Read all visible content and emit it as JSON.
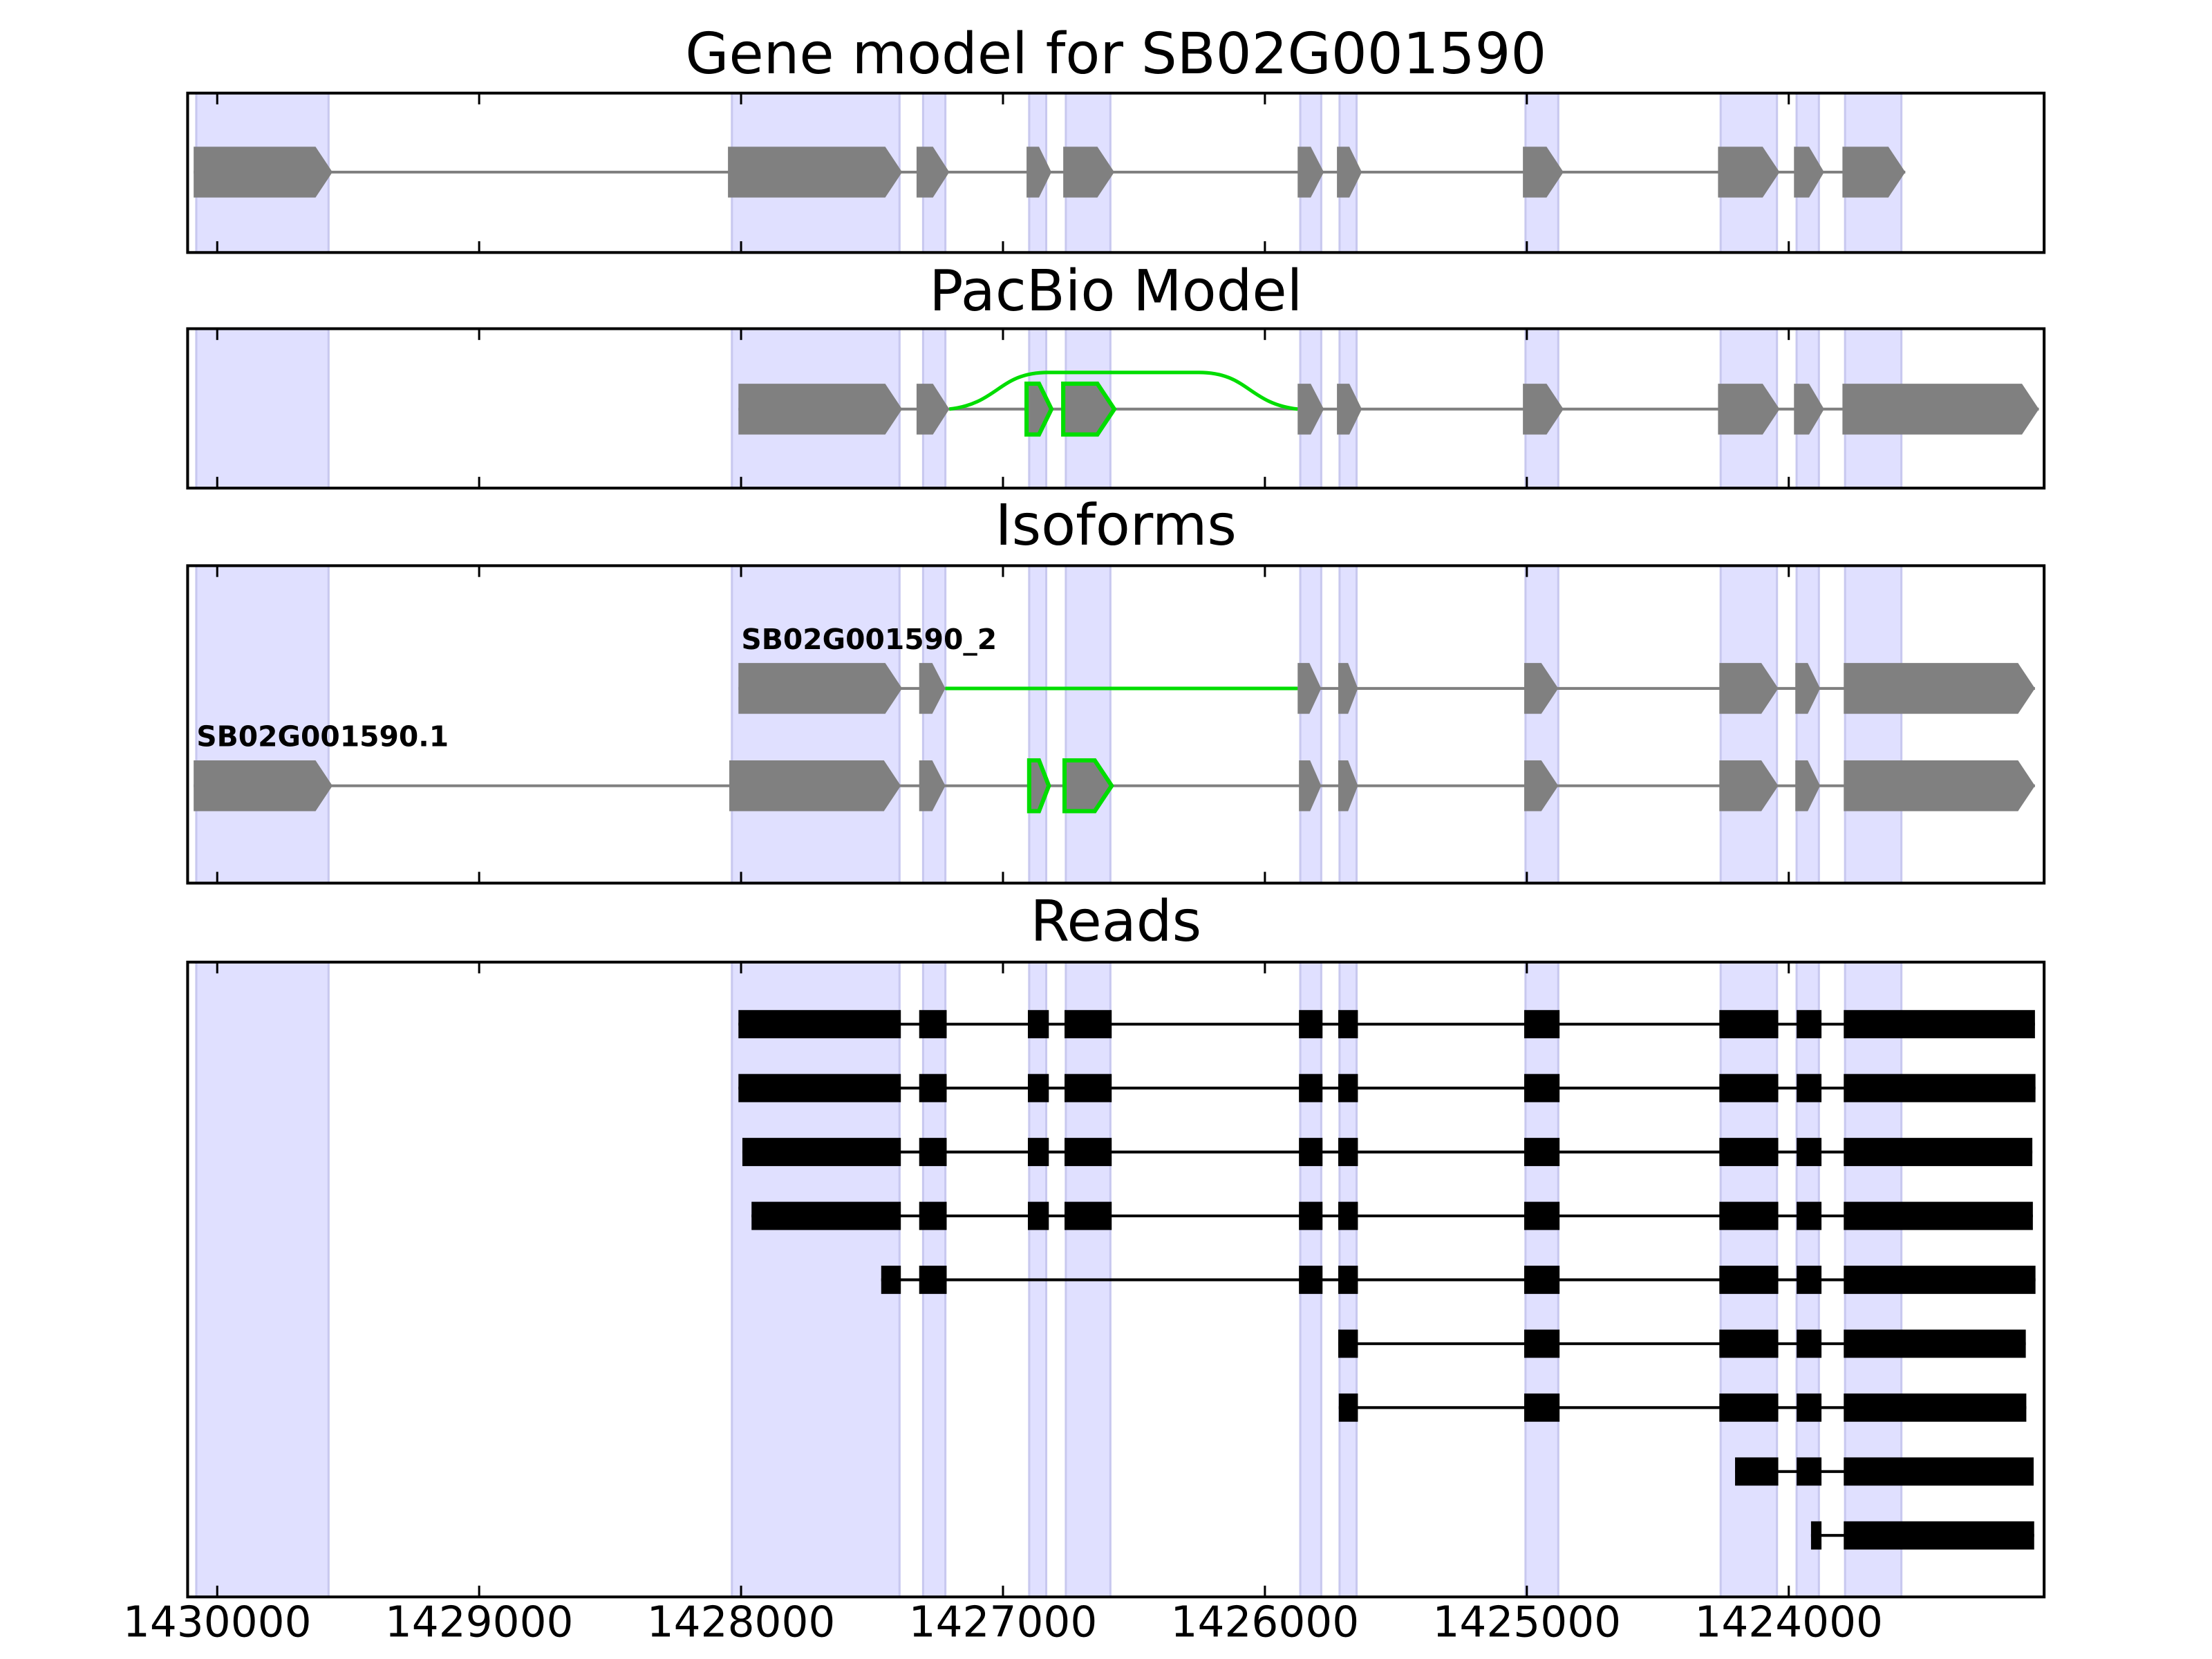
{
  "chart_data": {
    "type": "gene-tracks",
    "xlim": [
      1430113,
      1423025
    ],
    "xticks": [
      1430000,
      1429000,
      1428000,
      1427000,
      1426000,
      1425000,
      1424000
    ],
    "highlight_color": "#e0e0ff",
    "highlights": [
      [
        1430080,
        1429575
      ],
      [
        1428035,
        1427395
      ],
      [
        1427305,
        1427220
      ],
      [
        1426900,
        1426835
      ],
      [
        1426760,
        1426590
      ],
      [
        1425865,
        1425785
      ],
      [
        1425715,
        1425650
      ],
      [
        1425005,
        1424880
      ],
      [
        1424260,
        1424045
      ],
      [
        1423970,
        1423885
      ],
      [
        1423785,
        1423570
      ]
    ],
    "panels": [
      {
        "title": "Gene model for SB02G001590",
        "style": "arrow",
        "color": "#808080",
        "alt_color": "#00dd00",
        "tracks": [
          {
            "exons": [
              [
                1430090,
                1429560
              ],
              [
                1428050,
                1427385
              ],
              [
                1427330,
                1427205
              ],
              [
                1426910,
                1426815
              ],
              [
                1426770,
                1426575
              ],
              [
                1425875,
                1425775
              ],
              [
                1425725,
                1425630
              ],
              [
                1425015,
                1424860
              ],
              [
                1424270,
                1424035
              ],
              [
                1423980,
                1423865
              ],
              [
                1423795,
                1423555
              ]
            ]
          }
        ]
      },
      {
        "title": "PacBio Model",
        "style": "arrow",
        "color": "#808080",
        "alt_color": "#00dd00",
        "tracks": [
          {
            "exons": [
              [
                1428010,
                1427385
              ],
              [
                1427330,
                1427205
              ],
              [
                1425875,
                1425775
              ],
              [
                1425725,
                1425630
              ],
              [
                1425015,
                1424860
              ],
              [
                1424270,
                1424035
              ],
              [
                1423980,
                1423865
              ],
              [
                1423795,
                1423045
              ]
            ],
            "alt_exons": [
              [
                1426910,
                1426815
              ],
              [
                1426770,
                1426575
              ]
            ],
            "alt_intron": [
              1427205,
              1425875
            ],
            "alt_intron_shape": "arc"
          }
        ]
      },
      {
        "title": "Isoforms",
        "style": "arrow",
        "color": "#808080",
        "alt_color": "#00dd00",
        "tracks": [
          {
            "name": "SB02G001590_2",
            "exons": [
              [
                1428010,
                1427385
              ],
              [
                1427320,
                1427220
              ],
              [
                1425875,
                1425785
              ],
              [
                1425720,
                1425645
              ],
              [
                1425010,
                1424880
              ],
              [
                1424265,
                1424040
              ],
              [
                1423975,
                1423880
              ],
              [
                1423790,
                1423060
              ]
            ],
            "alt_intron": [
              1427220,
              1425875
            ],
            "alt_intron_shape": "line"
          },
          {
            "name": "SB02G001590.1",
            "exons": [
              [
                1430090,
                1429560
              ],
              [
                1428045,
                1427390
              ],
              [
                1427320,
                1427220
              ],
              [
                1425870,
                1425785
              ],
              [
                1425720,
                1425645
              ],
              [
                1425010,
                1424880
              ],
              [
                1424265,
                1424040
              ],
              [
                1423975,
                1423880
              ],
              [
                1423790,
                1423060
              ]
            ],
            "alt_exons": [
              [
                1426900,
                1426825
              ],
              [
                1426765,
                1426585
              ]
            ]
          }
        ]
      },
      {
        "title": "Reads",
        "style": "block",
        "color": "#000000",
        "tracks": [
          {
            "exons": [
              [
                1428010,
                1427390
              ],
              [
                1427320,
                1427215
              ],
              [
                1426905,
                1426825
              ],
              [
                1426765,
                1426585
              ],
              [
                1425870,
                1425780
              ],
              [
                1425720,
                1425645
              ],
              [
                1425010,
                1424875
              ],
              [
                1424265,
                1424040
              ],
              [
                1423970,
                1423875
              ],
              [
                1423790,
                1423060
              ]
            ]
          },
          {
            "exons": [
              [
                1428010,
                1427390
              ],
              [
                1427320,
                1427215
              ],
              [
                1426905,
                1426825
              ],
              [
                1426765,
                1426585
              ],
              [
                1425870,
                1425780
              ],
              [
                1425720,
                1425645
              ],
              [
                1425010,
                1424875
              ],
              [
                1424265,
                1424040
              ],
              [
                1423970,
                1423875
              ],
              [
                1423790,
                1423058
              ]
            ]
          },
          {
            "exons": [
              [
                1427995,
                1427390
              ],
              [
                1427320,
                1427215
              ],
              [
                1426905,
                1426825
              ],
              [
                1426765,
                1426585
              ],
              [
                1425870,
                1425780
              ],
              [
                1425720,
                1425645
              ],
              [
                1425010,
                1424875
              ],
              [
                1424265,
                1424040
              ],
              [
                1423970,
                1423875
              ],
              [
                1423790,
                1423070
              ]
            ]
          },
          {
            "exons": [
              [
                1427960,
                1427390
              ],
              [
                1427320,
                1427215
              ],
              [
                1426905,
                1426825
              ],
              [
                1426765,
                1426585
              ],
              [
                1425870,
                1425780
              ],
              [
                1425720,
                1425645
              ],
              [
                1425010,
                1424875
              ],
              [
                1424265,
                1424040
              ],
              [
                1423970,
                1423875
              ],
              [
                1423790,
                1423068
              ]
            ]
          },
          {
            "exons": [
              [
                1427465,
                1427390
              ],
              [
                1427320,
                1427215
              ],
              [
                1425870,
                1425780
              ],
              [
                1425720,
                1425645
              ],
              [
                1425010,
                1424875
              ],
              [
                1424265,
                1424040
              ],
              [
                1423970,
                1423875
              ],
              [
                1423790,
                1423058
              ]
            ]
          },
          {
            "exons": [
              [
                1425720,
                1425645
              ],
              [
                1425010,
                1424875
              ],
              [
                1424265,
                1424040
              ],
              [
                1423970,
                1423875
              ],
              [
                1423790,
                1423095
              ]
            ]
          },
          {
            "exons": [
              [
                1425718,
                1425645
              ],
              [
                1425010,
                1424875
              ],
              [
                1424265,
                1424040
              ],
              [
                1423970,
                1423875
              ],
              [
                1423790,
                1423093
              ]
            ]
          },
          {
            "exons": [
              [
                1424205,
                1424040
              ],
              [
                1423970,
                1423875
              ],
              [
                1423790,
                1423065
              ]
            ]
          },
          {
            "exons": [
              [
                1423915,
                1423875
              ],
              [
                1423790,
                1423063
              ]
            ]
          }
        ]
      }
    ]
  }
}
